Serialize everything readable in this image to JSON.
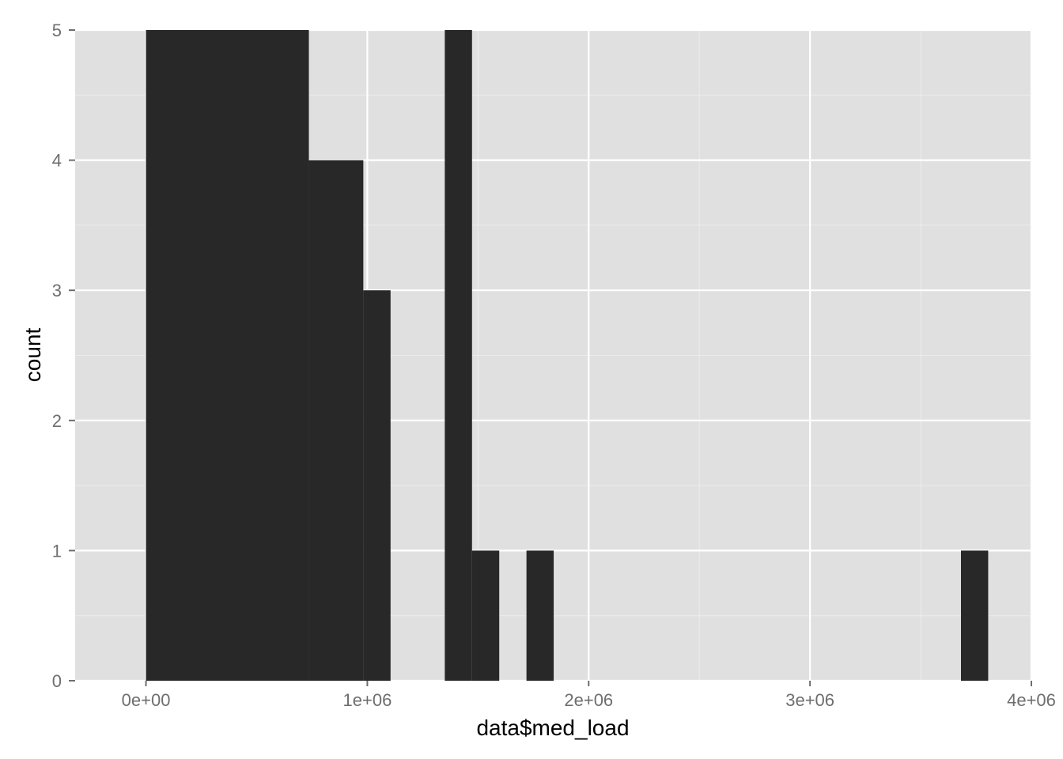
{
  "chart_data": {
    "type": "bar",
    "subtype": "histogram",
    "title": "",
    "xlabel": "data$med_load",
    "ylabel": "count",
    "xlim": [
      -320000,
      4000000
    ],
    "ylim": [
      0,
      5
    ],
    "x_ticks": [
      {
        "value": 0,
        "label": "0e+00"
      },
      {
        "value": 1000000,
        "label": "1e+06"
      },
      {
        "value": 2000000,
        "label": "2e+06"
      },
      {
        "value": 3000000,
        "label": "3e+06"
      },
      {
        "value": 4000000,
        "label": "4e+06"
      }
    ],
    "y_ticks": [
      {
        "value": 0,
        "label": "0"
      },
      {
        "value": 1,
        "label": "1"
      },
      {
        "value": 2,
        "label": "2"
      },
      {
        "value": 3,
        "label": "3"
      },
      {
        "value": 4,
        "label": "4"
      },
      {
        "value": 5,
        "label": "5"
      }
    ],
    "bins": [
      {
        "x0": 0,
        "x1": 736000,
        "count": 5
      },
      {
        "x0": 736000,
        "x1": 982000,
        "count": 4
      },
      {
        "x0": 982000,
        "x1": 1105000,
        "count": 3
      },
      {
        "x0": 1350000,
        "x1": 1473000,
        "count": 5
      },
      {
        "x0": 1473000,
        "x1": 1596000,
        "count": 1
      },
      {
        "x0": 1719000,
        "x1": 1842000,
        "count": 1
      },
      {
        "x0": 3682000,
        "x1": 3805000,
        "count": 1
      }
    ],
    "grid": true,
    "background": "#e0e0e0",
    "bar_color": "#282828",
    "grid_color": "#ffffff"
  }
}
